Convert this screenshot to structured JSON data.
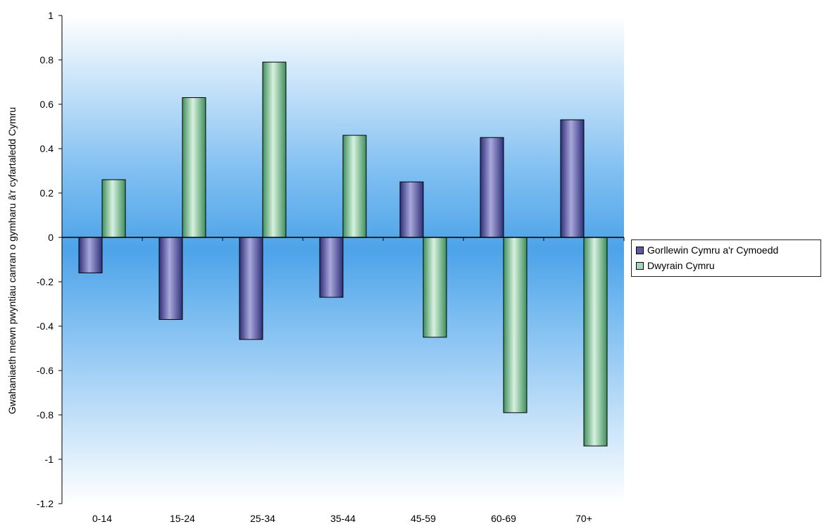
{
  "chart_data": {
    "type": "bar",
    "categories": [
      "0-14",
      "15-24",
      "25-34",
      "35-44",
      "45-59",
      "60-69",
      "70+"
    ],
    "series": [
      {
        "name": "Gorllewin Cymru a'r Cymoedd",
        "values": [
          -0.16,
          -0.37,
          -0.46,
          -0.27,
          0.25,
          0.45,
          0.53
        ],
        "color": "#5a5aa8"
      },
      {
        "name": "Dwyrain Cymru",
        "values": [
          0.26,
          0.63,
          0.79,
          0.46,
          -0.45,
          -0.79,
          -0.94
        ],
        "color": "#9fd8b4"
      }
    ],
    "ylabel": "Gwahaniaeth mewn pwyntiau canran o gymharu â'r cyfartaledd Cymru",
    "ylim": [
      -1.2,
      1
    ],
    "yticks": [
      "1",
      "0.8",
      "0.6",
      "0.4",
      "0.2",
      "0",
      "-0.2",
      "-0.4",
      "-0.6",
      "-0.8",
      "-1",
      "-1.2"
    ],
    "legend_position": "right",
    "colors": {
      "plot_top": "#ffffff",
      "plot_mid": "#4da3e8",
      "plot_bottom": "#ffffff"
    }
  }
}
